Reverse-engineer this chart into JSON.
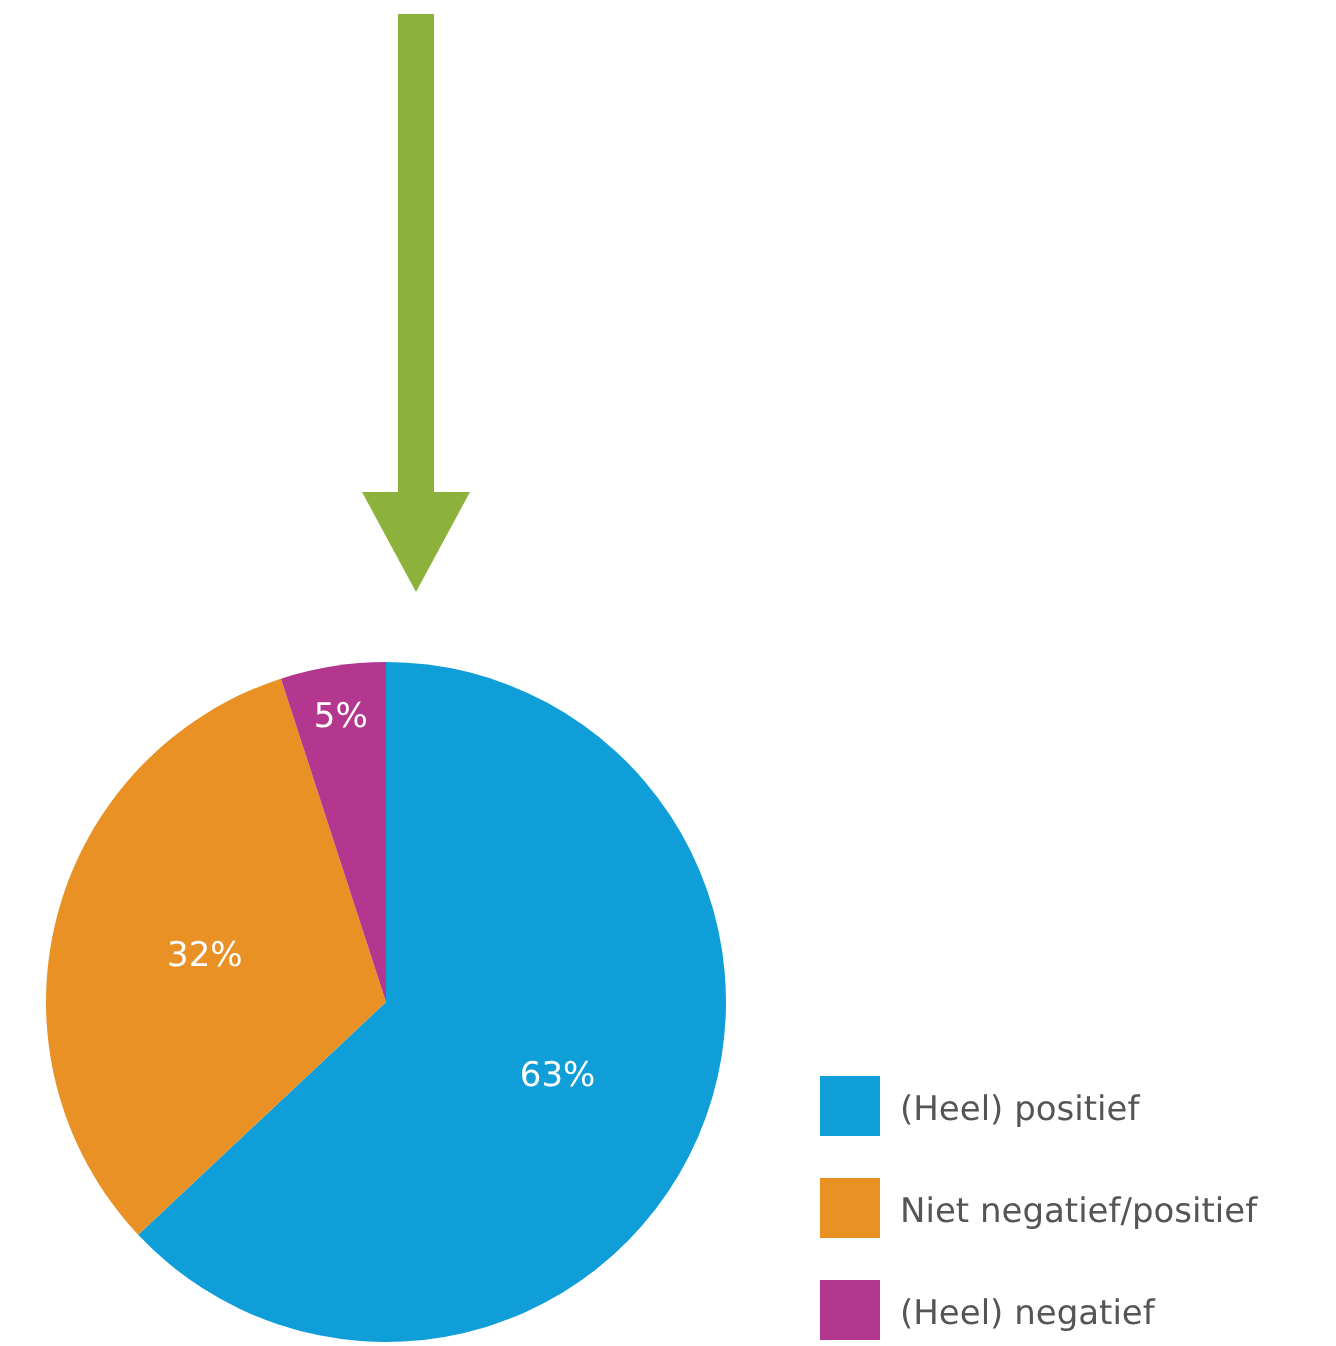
{
  "chart_data": {
    "type": "pie",
    "categories": [
      "(Heel) positief",
      "Niet negatief/positief",
      "(Heel) negatief"
    ],
    "values": [
      63,
      32,
      5
    ],
    "colors": [
      "#109ed9",
      "#e99125",
      "#b3368f"
    ],
    "value_labels": [
      "63%",
      "32%",
      "5%"
    ],
    "legend": "bottom right"
  }
}
